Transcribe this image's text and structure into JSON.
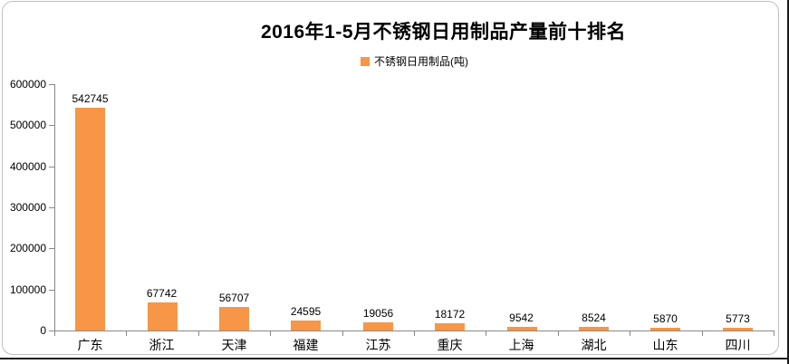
{
  "chart_data": {
    "type": "bar",
    "title": "2016年1-5月不锈钢日用制品产量前十排名",
    "legend": [
      "不锈钢日用制品(吨)"
    ],
    "legend_position": "top",
    "categories": [
      "广东",
      "浙江",
      "天津",
      "福建",
      "江苏",
      "重庆",
      "上海",
      "湖北",
      "山东",
      "四川"
    ],
    "values": [
      542745,
      67742,
      56707,
      24595,
      19056,
      18172,
      9542,
      8524,
      5870,
      5773
    ],
    "data_labels": [
      "542745",
      "67742",
      "56707",
      "24595",
      "19056",
      "18172",
      "9542",
      "8524",
      "5870",
      "5773"
    ],
    "xlabel": "",
    "ylabel": "",
    "ylim": [
      0,
      600000
    ],
    "ytick_interval": 100000,
    "ytick_labels": [
      "0",
      "100000",
      "200000",
      "300000",
      "400000",
      "500000",
      "600000"
    ],
    "grid": false,
    "colors": {
      "bar": "#F79646",
      "axis": "#898989",
      "text": "#000000",
      "frame_border": "#BFBFBF",
      "outer_edge": "#1A1A1A",
      "background": "#FFFFFF"
    }
  }
}
